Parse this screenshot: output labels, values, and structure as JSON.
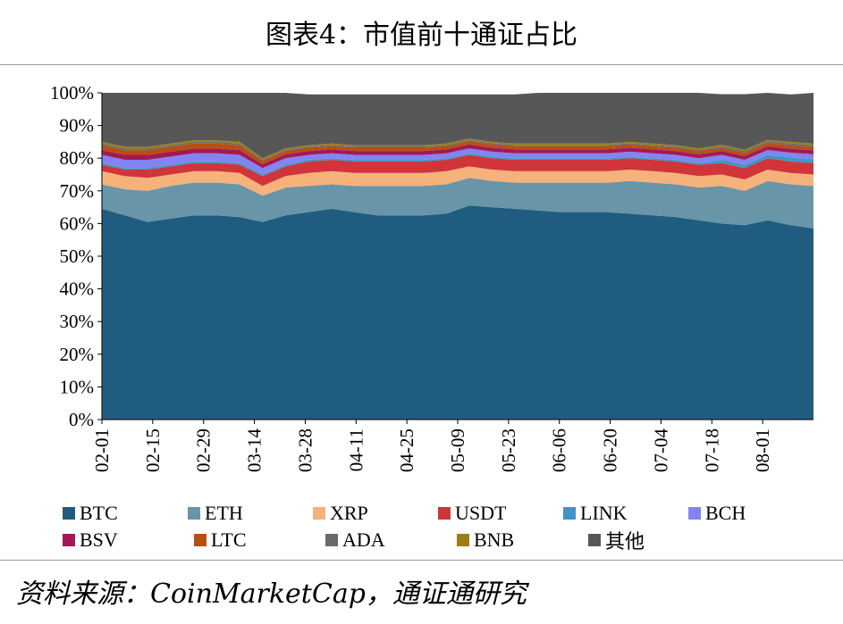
{
  "header": {
    "title": "图表4：市值前十通证占比"
  },
  "source": {
    "text": "资料来源：CoinMarketCap，通证通研究"
  },
  "colors": {
    "BTC": "#1f5c80",
    "ETH": "#6895a7",
    "XRP": "#f6b27b",
    "USDT": "#d03539",
    "LINK": "#3d96c6",
    "BCH": "#8384f2",
    "BSV": "#a21a55",
    "LTC": "#b84f12",
    "ADA": "#6b6b6b",
    "BNB": "#9b7f14",
    "其他": "#575757"
  },
  "chart_data": {
    "type": "area",
    "stacked": true,
    "xlabel": "",
    "ylabel": "",
    "ylim": [
      0,
      100
    ],
    "yticks": [
      "0%",
      "10%",
      "20%",
      "30%",
      "40%",
      "50%",
      "60%",
      "70%",
      "80%",
      "90%",
      "100%"
    ],
    "x_tick_labels": [
      "02-01",
      "02-15",
      "02-29",
      "03-14",
      "03-28",
      "04-11",
      "04-25",
      "05-09",
      "05-23",
      "06-06",
      "06-20",
      "07-04",
      "07-18",
      "08-01"
    ],
    "x": [
      "02-01",
      "02-08",
      "02-15",
      "02-22",
      "02-29",
      "03-07",
      "03-12",
      "03-14",
      "03-16",
      "03-21",
      "03-28",
      "04-04",
      "04-11",
      "04-18",
      "04-25",
      "05-02",
      "05-09",
      "05-16",
      "05-23",
      "05-30",
      "06-06",
      "06-13",
      "06-20",
      "06-27",
      "07-04",
      "07-11",
      "07-18",
      "07-25",
      "07-30",
      "08-01",
      "08-08",
      "08-15"
    ],
    "legend": [
      "BTC",
      "ETH",
      "XRP",
      "USDT",
      "LINK",
      "BCH",
      "BSV",
      "LTC",
      "ADA",
      "BNB",
      "其他"
    ],
    "series": [
      {
        "name": "BTC",
        "values": [
          64.5,
          62.5,
          60.5,
          61.5,
          62.5,
          62.5,
          62,
          60.5,
          62.5,
          63.5,
          64.5,
          63.5,
          62.5,
          62.5,
          62.5,
          63,
          65.5,
          65,
          64.5,
          64,
          63.5,
          63.5,
          63.5,
          63,
          62.5,
          62,
          61,
          60,
          59.5,
          61,
          59.5,
          58.5
        ]
      },
      {
        "name": "ETH",
        "values": [
          7.5,
          8,
          9.5,
          10,
          10,
          10,
          10,
          8,
          8.5,
          8,
          7.5,
          8,
          9,
          9,
          9,
          9,
          8.5,
          8,
          8,
          8.5,
          9,
          9,
          9,
          10,
          10,
          10,
          10,
          11.5,
          10.5,
          12,
          12.5,
          13
        ]
      },
      {
        "name": "XRP",
        "values": [
          4,
          4,
          4,
          3.5,
          3.5,
          3.5,
          3.5,
          3,
          3.5,
          4,
          4,
          4,
          4,
          4,
          4,
          4,
          3.5,
          3.5,
          3.5,
          3.5,
          3.5,
          3.5,
          3.5,
          3.5,
          3.5,
          3.5,
          3.5,
          3.5,
          3.5,
          3.5,
          3.5,
          3.5
        ]
      },
      {
        "name": "USDT",
        "values": [
          2,
          2,
          2.5,
          2.5,
          2.5,
          2.5,
          2.5,
          3,
          3,
          3.5,
          3.5,
          3.5,
          3.5,
          3.5,
          3.5,
          3.5,
          3.5,
          3.5,
          3.5,
          3.5,
          3.5,
          3.5,
          3.5,
          3.5,
          3.5,
          3.5,
          3.5,
          3.5,
          3.5,
          3.5,
          3.5,
          3.5
        ]
      },
      {
        "name": "LINK",
        "values": [
          0.5,
          0.5,
          0.5,
          0.5,
          0.5,
          0.5,
          0.5,
          0.5,
          0.5,
          0.5,
          0.5,
          0.5,
          0.5,
          0.5,
          0.5,
          0.5,
          0.5,
          0.5,
          0.5,
          0.5,
          0.5,
          0.5,
          0.5,
          0.5,
          0.5,
          0.5,
          0.5,
          1,
          1,
          1,
          1.2,
          1.2
        ]
      },
      {
        "name": "BCH",
        "values": [
          2.5,
          2.5,
          2.5,
          2.5,
          2.5,
          2.5,
          2.5,
          2,
          2,
          1.5,
          1.5,
          1.5,
          1.5,
          1.5,
          1.5,
          1.5,
          1.5,
          1.5,
          1.5,
          1.5,
          1.5,
          1.5,
          1.5,
          1.5,
          1.5,
          1.5,
          1.5,
          1.5,
          1.5,
          1.5,
          1.5,
          1.5
        ]
      },
      {
        "name": "BSV",
        "values": [
          1.5,
          1.5,
          1.5,
          1.5,
          1.5,
          1.5,
          1.5,
          1.2,
          1.2,
          1.2,
          1.2,
          1.2,
          1.2,
          1.2,
          1.2,
          1.2,
          1.2,
          1.2,
          1.2,
          1.2,
          1.2,
          1.2,
          1.2,
          1.2,
          1.2,
          1.2,
          1.2,
          1.2,
          1.2,
          1.2,
          1.2,
          1.2
        ]
      },
      {
        "name": "LTC",
        "values": [
          1.5,
          1.5,
          1.5,
          1.5,
          1.5,
          1.5,
          1.5,
          1,
          1,
          1,
          1,
          1,
          1,
          1,
          1,
          1,
          1,
          1,
          1,
          1,
          1,
          1,
          1,
          1,
          1,
          1,
          1,
          1,
          1,
          1,
          1,
          1
        ]
      },
      {
        "name": "ADA",
        "values": [
          0.5,
          0.5,
          0.5,
          0.5,
          0.5,
          0.5,
          0.5,
          0.4,
          0.4,
          0.4,
          0.4,
          0.4,
          0.4,
          0.4,
          0.4,
          0.4,
          0.4,
          0.4,
          0.4,
          0.4,
          0.4,
          0.4,
          0.4,
          0.4,
          0.4,
          0.4,
          0.4,
          0.5,
          0.5,
          0.5,
          0.6,
          0.6
        ]
      },
      {
        "name": "BNB",
        "values": [
          0.5,
          0.5,
          0.5,
          0.5,
          0.5,
          0.5,
          0.5,
          0.4,
          0.4,
          0.4,
          0.4,
          0.4,
          0.4,
          0.4,
          0.4,
          0.4,
          0.4,
          0.4,
          0.4,
          0.4,
          0.4,
          0.4,
          0.4,
          0.4,
          0.4,
          0.4,
          0.4,
          0.4,
          0.4,
          0.4,
          0.5,
          0.5
        ]
      },
      {
        "name": "其他",
        "values": [
          15,
          16.5,
          16.5,
          15.5,
          14.5,
          14.5,
          15,
          20,
          17,
          15.5,
          15,
          15.5,
          15.5,
          15.5,
          15.5,
          15,
          13.5,
          14.5,
          15,
          15.5,
          15.5,
          15.5,
          15.5,
          15,
          15.5,
          16,
          17,
          15.5,
          17,
          14.5,
          14.5,
          15.5
        ]
      }
    ]
  }
}
